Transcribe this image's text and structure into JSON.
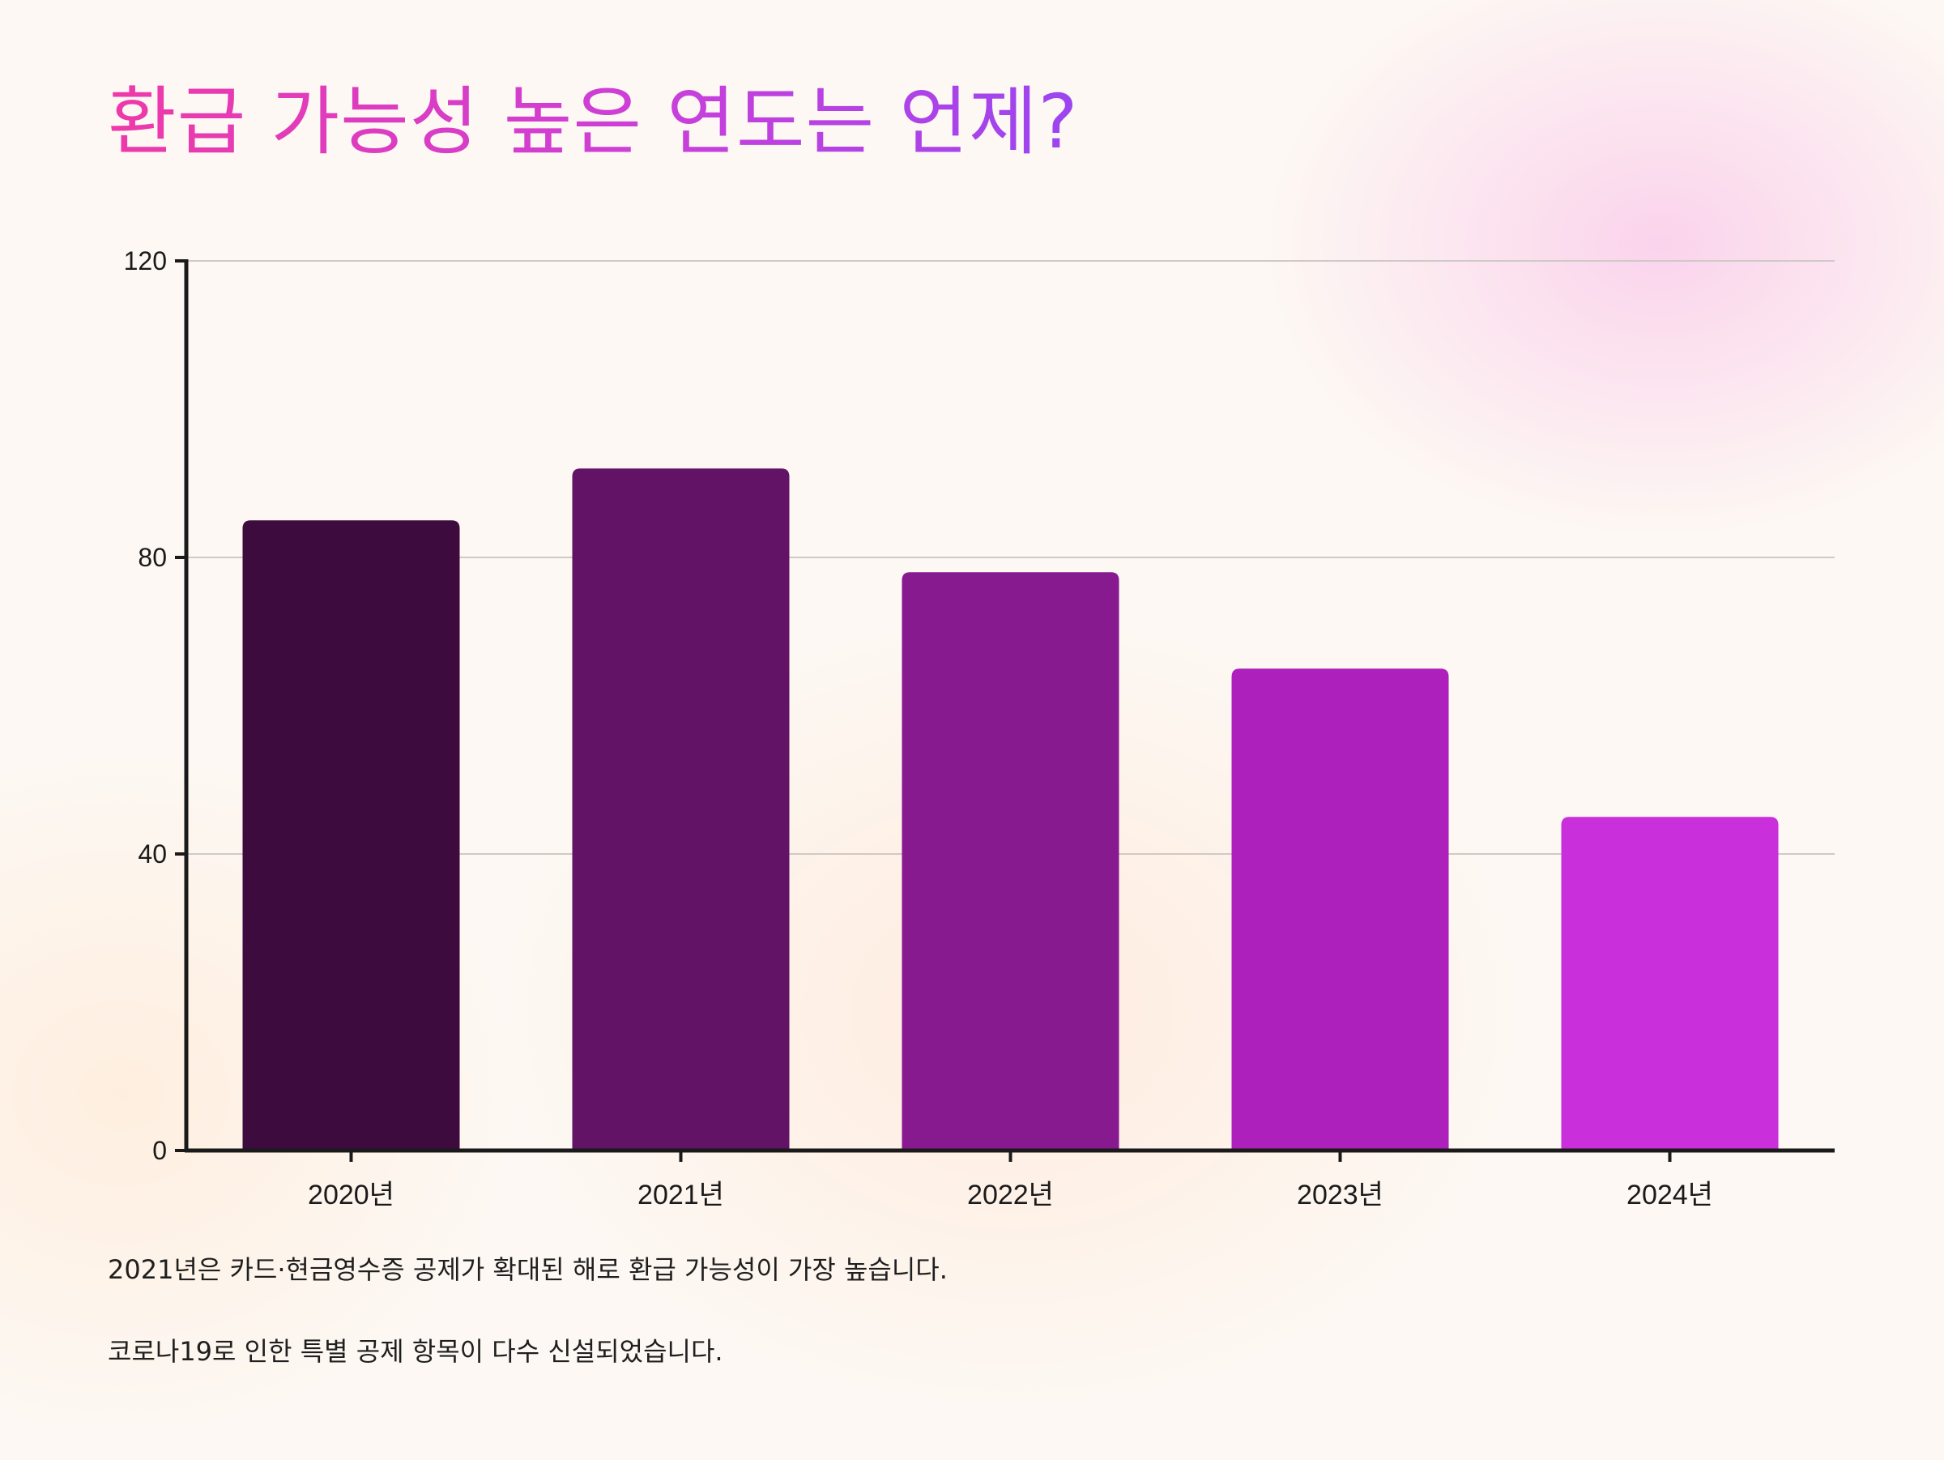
{
  "chart_data": {
    "type": "bar",
    "title": "환급 가능성 높은 연도는 언제?",
    "categories": [
      "2020년",
      "2021년",
      "2022년",
      "2023년",
      "2024년"
    ],
    "values": [
      85,
      92,
      78,
      65,
      45
    ],
    "colors": [
      "#3d0b3d",
      "#621365",
      "#881a90",
      "#ad20bb",
      "#c92fdb"
    ],
    "ylim": [
      0,
      120
    ],
    "yticks": [
      0,
      40,
      80,
      120
    ],
    "ytick_labels": [
      "0",
      "40",
      "80",
      "120"
    ],
    "xlabel": "",
    "ylabel": "",
    "grid": true,
    "legend": "none"
  },
  "captions": [
    "2021년은 카드·현금영수증 공제가 확대된 해로 환급 가능성이 가장 높습니다.",
    "코로나19로 인한 특별 공제 항목이 다수 신설되었습니다."
  ],
  "colors": {
    "axis": "#1a1a1a",
    "grid": "#cfcac6",
    "tick_label": "#1a1a1a"
  }
}
